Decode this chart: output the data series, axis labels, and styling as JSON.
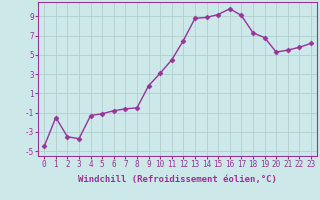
{
  "x": [
    0,
    1,
    2,
    3,
    4,
    5,
    6,
    7,
    8,
    9,
    10,
    11,
    12,
    13,
    14,
    15,
    16,
    17,
    18,
    19,
    20,
    21,
    22,
    23
  ],
  "y": [
    -4.5,
    -1.5,
    -3.5,
    -3.7,
    -1.3,
    -1.1,
    -0.8,
    -0.6,
    -0.5,
    1.8,
    3.1,
    4.5,
    6.5,
    8.8,
    8.9,
    9.2,
    9.8,
    9.1,
    7.3,
    6.8,
    5.3,
    5.5,
    5.8,
    6.2
  ],
  "line_color": "#993399",
  "marker": "D",
  "markersize": 2.5,
  "linewidth": 1.0,
  "bg_color": "#cce8e8",
  "grid_color": "#aacccc",
  "xlabel": "Windchill (Refroidissement éolien,°C)",
  "xlim": [
    -0.5,
    23.5
  ],
  "ylim": [
    -5.5,
    10.5
  ],
  "yticks": [
    -5,
    -3,
    -1,
    1,
    3,
    5,
    7,
    9
  ],
  "xticks": [
    0,
    1,
    2,
    3,
    4,
    5,
    6,
    7,
    8,
    9,
    10,
    11,
    12,
    13,
    14,
    15,
    16,
    17,
    18,
    19,
    20,
    21,
    22,
    23
  ],
  "tick_fontsize": 5.5,
  "xlabel_fontsize": 6.5,
  "tick_color": "#993399",
  "spine_color": "#993399"
}
